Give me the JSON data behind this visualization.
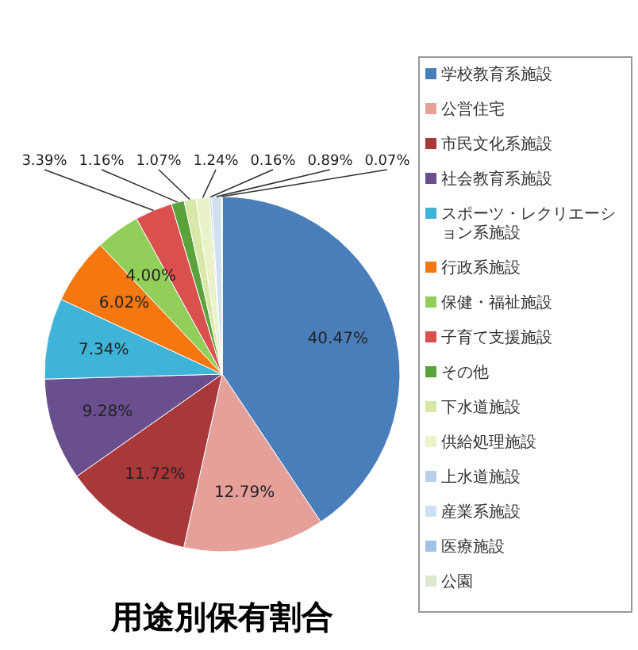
{
  "chart_data": {
    "type": "pie",
    "title": "用途別保有割合",
    "categories": [
      "学校教育系施設",
      "公営住宅",
      "市民文化系施設",
      "社会教育系施設",
      "スポーツ・レクリエーション系施設",
      "行政系施設",
      "保健・福祉施設",
      "子育て支援施設",
      "その他",
      "下水道施設",
      "供給処理施設",
      "上水道施設",
      "産業系施設",
      "医療施設",
      "公園"
    ],
    "values": [
      40.47,
      12.79,
      11.72,
      9.28,
      7.34,
      6.02,
      4.0,
      3.39,
      1.16,
      1.07,
      1.24,
      0.16,
      0.89,
      0.07,
      0
    ],
    "colors": [
      "#4a7ebb",
      "#e6a09a",
      "#a8383a",
      "#6a4f8f",
      "#3fb3d8",
      "#f5770f",
      "#92cf5a",
      "#d9504e",
      "#5aa33a",
      "#d7e8a8",
      "#e9f2c8",
      "#b9cfe8",
      "#cfe0f0",
      "#9fc3e8",
      "#dde8d0"
    ],
    "value_labels": [
      "40.47%",
      "12.79%",
      "11.72%",
      "9.28%",
      "7.34%",
      "6.02%",
      "4.00%",
      "3.39%",
      "1.16%",
      "1.07%",
      "1.24%",
      "0.16%",
      "0.89%",
      "0.07%",
      null
    ],
    "legend": "right"
  }
}
